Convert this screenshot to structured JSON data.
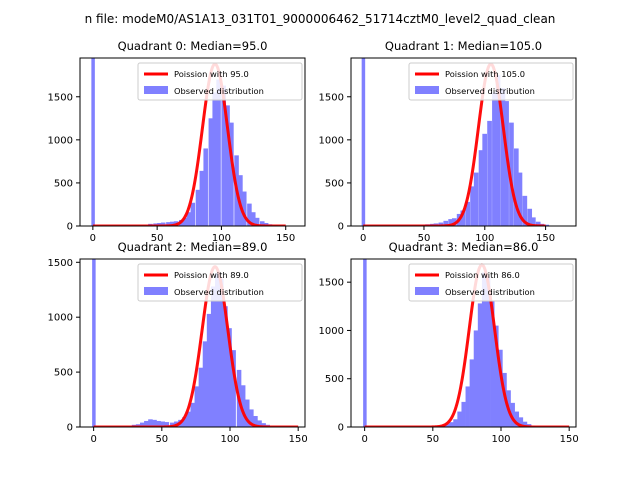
{
  "figure_title": "n file: modeM0/AS1A13_031T01_9000006462_51714cztM0_level2_quad_clean",
  "colors": {
    "poisson": "#ff0000",
    "observed": "#8080ff",
    "axis": "#000000"
  },
  "chart_data": [
    {
      "type": "bar",
      "title": "Quadrant 0: Median=95.0",
      "xlim": [
        -10,
        165
      ],
      "ylim": [
        0,
        1950
      ],
      "xticks": [
        0,
        50,
        100,
        150
      ],
      "yticks": [
        0,
        500,
        1000,
        1500
      ],
      "legend_position": "top-right",
      "bin_width": 3.3,
      "median": 95.0,
      "poisson_peak": 1880,
      "outlier_bin": {
        "x": 0,
        "value": 1950
      },
      "observed_bins": [
        [
          43,
          25
        ],
        [
          47,
          30
        ],
        [
          50,
          35
        ],
        [
          53,
          40
        ],
        [
          57,
          45
        ],
        [
          60,
          50
        ],
        [
          63,
          55
        ],
        [
          67,
          70
        ],
        [
          70,
          95
        ],
        [
          73,
          160
        ],
        [
          76,
          270
        ],
        [
          80,
          420
        ],
        [
          83,
          640
        ],
        [
          86,
          900
        ],
        [
          90,
          1250
        ],
        [
          93,
          1550
        ],
        [
          96,
          1700
        ],
        [
          100,
          1630
        ],
        [
          103,
          1400
        ],
        [
          106,
          1200
        ],
        [
          110,
          820
        ],
        [
          113,
          590
        ],
        [
          116,
          400
        ],
        [
          120,
          260
        ],
        [
          123,
          160
        ],
        [
          126,
          95
        ],
        [
          130,
          55
        ],
        [
          133,
          35
        ],
        [
          136,
          20
        ],
        [
          140,
          10
        ]
      ],
      "series": [
        {
          "name": "Poission with 95.0",
          "kind": "line"
        },
        {
          "name": "Observed distribution",
          "kind": "bar"
        }
      ]
    },
    {
      "type": "bar",
      "title": "Quadrant 1: Median=105.0",
      "xlim": [
        -10,
        175
      ],
      "ylim": [
        0,
        1950
      ],
      "xticks": [
        0,
        50,
        100,
        150
      ],
      "yticks": [
        0,
        500,
        1000,
        1500
      ],
      "legend_position": "top-right",
      "bin_width": 3.6,
      "median": 105.0,
      "poisson_peak": 1880,
      "outlier_bin": {
        "x": 0,
        "value": 1950
      },
      "observed_bins": [
        [
          47,
          15
        ],
        [
          51,
          20
        ],
        [
          55,
          25
        ],
        [
          58,
          30
        ],
        [
          62,
          40
        ],
        [
          66,
          60
        ],
        [
          70,
          80
        ],
        [
          73,
          90
        ],
        [
          77,
          140
        ],
        [
          80,
          180
        ],
        [
          84,
          280
        ],
        [
          88,
          460
        ],
        [
          91,
          620
        ],
        [
          95,
          880
        ],
        [
          98,
          1070
        ],
        [
          102,
          1220
        ],
        [
          106,
          1550
        ],
        [
          109,
          1750
        ],
        [
          113,
          1600
        ],
        [
          116,
          1450
        ],
        [
          120,
          1200
        ],
        [
          124,
          900
        ],
        [
          127,
          620
        ],
        [
          131,
          350
        ],
        [
          135,
          200
        ],
        [
          138,
          100
        ],
        [
          142,
          50
        ],
        [
          145,
          25
        ],
        [
          149,
          15
        ]
      ],
      "series": [
        {
          "name": "Poission with 105.0",
          "kind": "line"
        },
        {
          "name": "Observed distribution",
          "kind": "bar"
        }
      ]
    },
    {
      "type": "bar",
      "title": "Quadrant 2: Median=89.0",
      "xlim": [
        -10,
        155
      ],
      "ylim": [
        0,
        1530
      ],
      "xticks": [
        0,
        50,
        100,
        150
      ],
      "yticks": [
        0,
        500,
        1000,
        1500
      ],
      "legend_position": "top-right",
      "bin_width": 3.1,
      "median": 89.0,
      "poisson_peak": 1460,
      "outlier_bin": {
        "x": 0,
        "value": 1530
      },
      "observed_bins": [
        [
          28,
          20
        ],
        [
          31,
          25
        ],
        [
          34,
          40
        ],
        [
          37,
          55
        ],
        [
          40,
          70
        ],
        [
          43,
          65
        ],
        [
          46,
          55
        ],
        [
          49,
          50
        ],
        [
          52,
          45
        ],
        [
          56,
          40
        ],
        [
          59,
          50
        ],
        [
          62,
          65
        ],
        [
          65,
          90
        ],
        [
          68,
          140
        ],
        [
          71,
          220
        ],
        [
          74,
          370
        ],
        [
          77,
          540
        ],
        [
          80,
          780
        ],
        [
          83,
          1030
        ],
        [
          86,
          1280
        ],
        [
          89,
          1400
        ],
        [
          92,
          1350
        ],
        [
          95,
          1100
        ],
        [
          98,
          900
        ],
        [
          101,
          700
        ],
        [
          105,
          520
        ],
        [
          108,
          380
        ],
        [
          111,
          250
        ],
        [
          114,
          160
        ],
        [
          117,
          100
        ],
        [
          120,
          60
        ],
        [
          123,
          35
        ],
        [
          126,
          20
        ]
      ],
      "series": [
        {
          "name": "Poission with 89.0",
          "kind": "line"
        },
        {
          "name": "Observed distribution",
          "kind": "bar"
        }
      ]
    },
    {
      "type": "bar",
      "title": "Quadrant 3: Median=86.0",
      "xlim": [
        -10,
        155
      ],
      "ylim": [
        0,
        1740
      ],
      "xticks": [
        0,
        50,
        100,
        150
      ],
      "yticks": [
        0,
        500,
        1000,
        1500
      ],
      "legend_position": "top-right",
      "bin_width": 3.0,
      "median": 86.0,
      "poisson_peak": 1680,
      "outlier_bin": {
        "x": 0,
        "value": 1740
      },
      "observed_bins": [
        [
          53,
          10
        ],
        [
          56,
          20
        ],
        [
          59,
          30
        ],
        [
          62,
          50
        ],
        [
          65,
          80
        ],
        [
          68,
          160
        ],
        [
          71,
          260
        ],
        [
          74,
          420
        ],
        [
          77,
          700
        ],
        [
          80,
          1000
        ],
        [
          83,
          1280
        ],
        [
          86,
          1600
        ],
        [
          89,
          1550
        ],
        [
          92,
          1300
        ],
        [
          95,
          1050
        ],
        [
          98,
          800
        ],
        [
          101,
          560
        ],
        [
          104,
          380
        ],
        [
          107,
          250
        ],
        [
          110,
          160
        ],
        [
          113,
          100
        ],
        [
          116,
          55
        ],
        [
          119,
          30
        ],
        [
          122,
          15
        ]
      ],
      "series": [
        {
          "name": "Poission with 86.0",
          "kind": "line"
        },
        {
          "name": "Observed distribution",
          "kind": "bar"
        }
      ]
    }
  ]
}
